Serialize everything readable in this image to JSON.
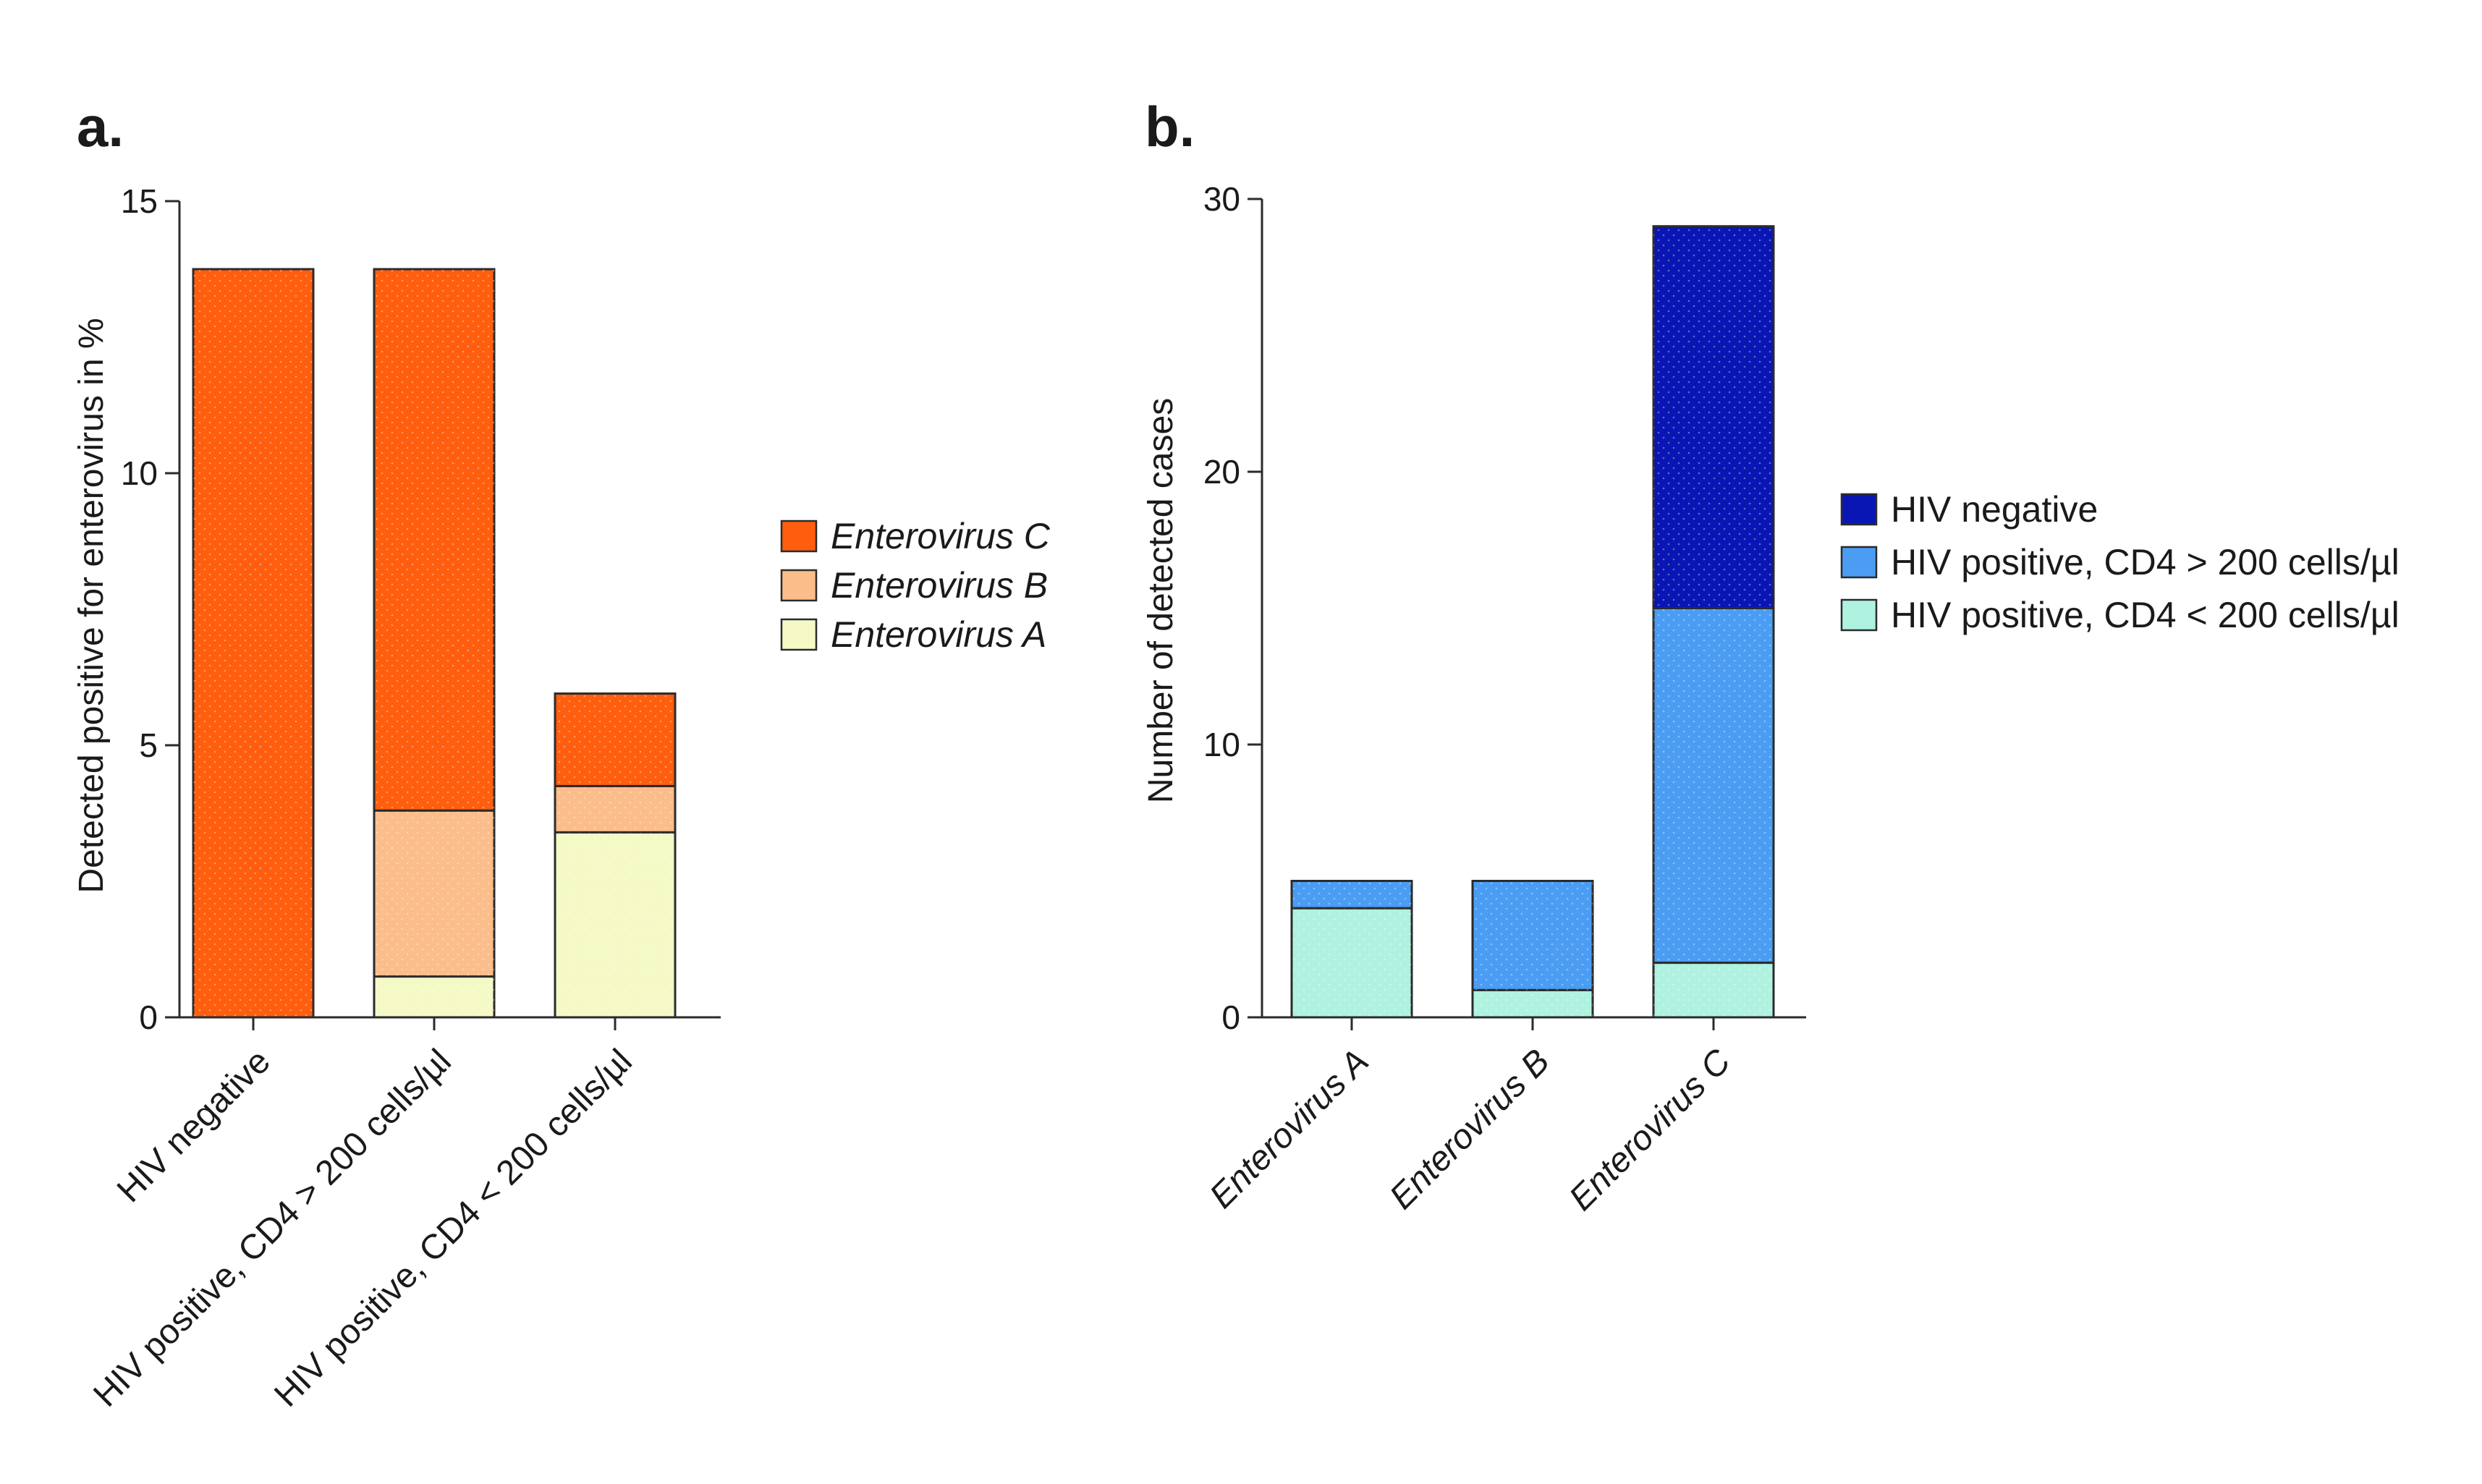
{
  "chart_data": [
    {
      "panel_label": "a.",
      "type": "bar",
      "stacked": true,
      "ylabel": "Detected positive for enterovirus in %",
      "xlabel": "",
      "ylim": [
        0,
        15
      ],
      "yticks": [
        0,
        5,
        10,
        15
      ],
      "categories": [
        "HIV negative",
        "HIV positive, CD4 > 200 cells/µl",
        "HIV positive, CD4 < 200 cells/µl"
      ],
      "series": [
        {
          "name": "Enterovirus A",
          "color": "#f4f9c6",
          "values": [
            0,
            0.75,
            3.4
          ]
        },
        {
          "name": "Enterovirus B",
          "color": "#fbbd8a",
          "values": [
            0,
            3.05,
            0.85
          ]
        },
        {
          "name": "Enterovirus C",
          "color": "#ff5e0e",
          "values": [
            13.75,
            9.95,
            1.7
          ]
        }
      ],
      "legend": {
        "position": "right",
        "order": [
          "Enterovirus C",
          "Enterovirus B",
          "Enterovirus A"
        ],
        "italic": true
      },
      "grid": false
    },
    {
      "panel_label": "b.",
      "type": "bar",
      "stacked": true,
      "ylabel": "Number of detected cases",
      "xlabel": "",
      "ylim": [
        0,
        30
      ],
      "yticks": [
        0,
        10,
        20,
        30
      ],
      "categories": [
        "Enterovirus A",
        "Enterovirus B",
        "Enterovirus C"
      ],
      "categories_italic": true,
      "series": [
        {
          "name": "HIV positive, CD4 < 200 cells/µl",
          "color": "#aff2e0",
          "values": [
            4,
            1,
            2
          ]
        },
        {
          "name": "HIV positive, CD4 > 200 cells/µl",
          "color": "#4a9df2",
          "values": [
            1,
            4,
            13
          ]
        },
        {
          "name": "HIV negative",
          "color": "#0a16b4",
          "values": [
            0,
            0,
            14
          ]
        }
      ],
      "legend": {
        "position": "right",
        "order": [
          "HIV negative",
          "HIV positive, CD4 > 200 cells/µl",
          "HIV positive, CD4 < 200 cells/µl"
        ],
        "italic": false
      },
      "grid": false
    }
  ]
}
